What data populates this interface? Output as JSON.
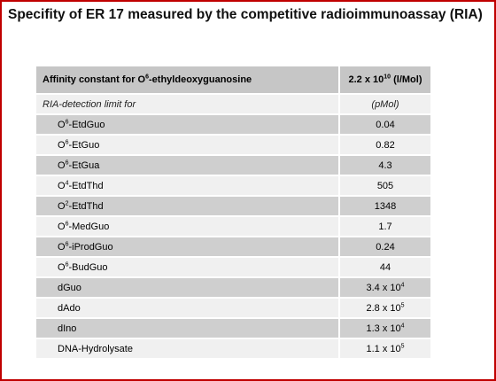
{
  "title": "Specifity of ER 17 measured by the competitive radioimmunoassay (RIA)",
  "header": {
    "label_pre": "Affinity constant for O",
    "label_sup": "6",
    "label_post": "-ethyldeoxyguanosine",
    "value_base": "2.2 x 10",
    "value_sup": "10",
    "value_unit": " (l/Mol)"
  },
  "subheader": {
    "label": "RIA-detection limit for",
    "unit": "(pMol)"
  },
  "rows": [
    {
      "pre": "O",
      "sup": "6",
      "post": "-EtdGuo",
      "value": "0.04",
      "value_sup": ""
    },
    {
      "pre": "O",
      "sup": "6",
      "post": "-EtGuo",
      "value": "0.82",
      "value_sup": ""
    },
    {
      "pre": "O",
      "sup": "6",
      "post": "-EtGua",
      "value": "4.3",
      "value_sup": ""
    },
    {
      "pre": "O",
      "sup": "4",
      "post": "-EtdThd",
      "value": "505",
      "value_sup": ""
    },
    {
      "pre": "O",
      "sup": "2",
      "post": "-EtdThd",
      "value": "1348",
      "value_sup": ""
    },
    {
      "pre": "O",
      "sup": "6",
      "post": "-MedGuo",
      "value": "1.7",
      "value_sup": ""
    },
    {
      "pre": "O",
      "sup": "6",
      "post": "-iProdGuo",
      "value": "0.24",
      "value_sup": ""
    },
    {
      "pre": "O",
      "sup": "6",
      "post": "-BudGuo",
      "value": "44",
      "value_sup": ""
    },
    {
      "pre": "dGuo",
      "sup": "",
      "post": "",
      "value": "3.4 x 10",
      "value_sup": "4"
    },
    {
      "pre": "dAdo",
      "sup": "",
      "post": "",
      "value": "2.8 x 10",
      "value_sup": "5"
    },
    {
      "pre": "dIno",
      "sup": "",
      "post": "",
      "value": "1.3 x 10",
      "value_sup": "4"
    },
    {
      "pre": "DNA-Hydrolysate",
      "sup": "",
      "post": "",
      "value": "1.1 x 10",
      "value_sup": "5"
    }
  ]
}
